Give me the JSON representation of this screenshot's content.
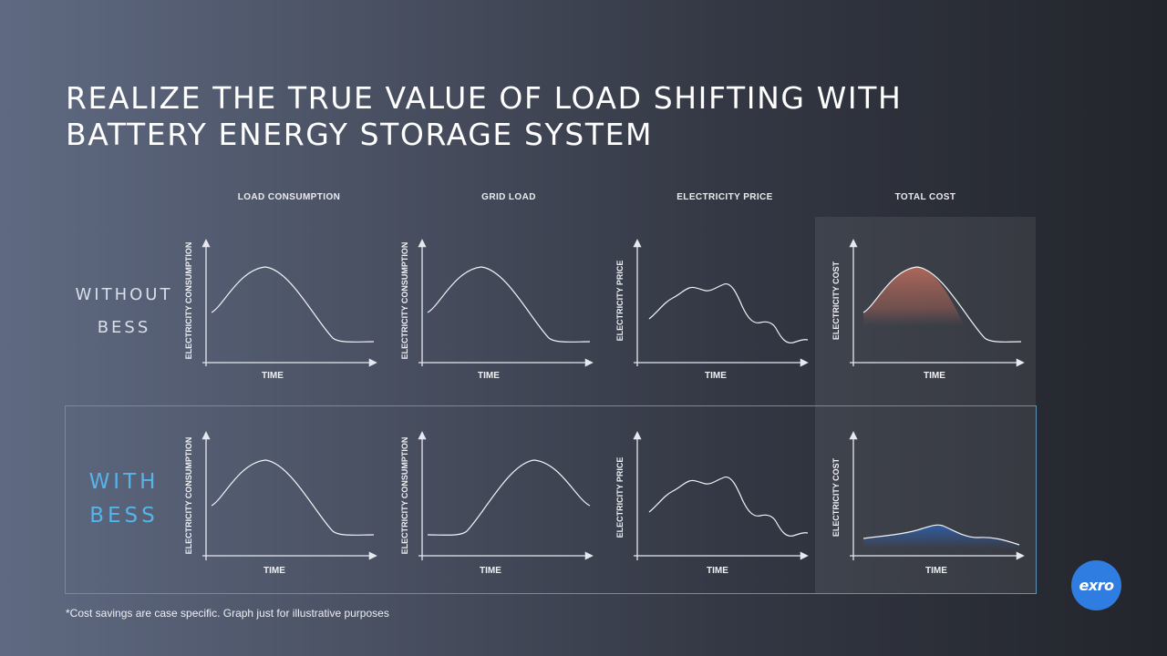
{
  "title": {
    "line1": "REALIZE THE TRUE VALUE OF LOAD SHIFTING WITH",
    "line2": "BATTERY ENERGY STORAGE SYSTEM"
  },
  "columns": [
    "LOAD CONSUMPTION",
    "GRID LOAD",
    "ELECTRICITY PRICE",
    "TOTAL COST"
  ],
  "rows": [
    {
      "line1": "WITHOUT",
      "line2": "BESS"
    },
    {
      "line1": "WITH",
      "line2": "BESS"
    }
  ],
  "graphs": {
    "without_load": {
      "ylabel": "ELECTRICITY CONSUMPTION",
      "xlabel": "TIME"
    },
    "without_grid": {
      "ylabel": "ELECTRICITY CONSUMPTION",
      "xlabel": "TIME"
    },
    "without_price": {
      "ylabel": "ELECTRICITY PRICE",
      "xlabel": "TIME"
    },
    "without_cost": {
      "ylabel": "ELECTRICITY COST",
      "xlabel": "TIME"
    },
    "with_load": {
      "ylabel": "ELECTRICITY CONSUMPTION",
      "xlabel": "TIME"
    },
    "with_grid": {
      "ylabel": "ELECTRICITY CONSUMPTION",
      "xlabel": "TIME"
    },
    "with_price": {
      "ylabel": "ELECTRICITY PRICE",
      "xlabel": "TIME"
    },
    "with_cost": {
      "ylabel": "ELECTRICITY COST",
      "xlabel": "TIME"
    }
  },
  "footnote": "*Cost savings are case specific. Graph just for illustrative purposes",
  "logo_text": "exro",
  "colors": {
    "with_bess_label": "#55b4ea",
    "with_bess_border": "#5d91b5",
    "cost_fill_without": "#b26a5c",
    "cost_fill_with": "#2f5fa8",
    "logo_bg": "#2f7de1"
  }
}
